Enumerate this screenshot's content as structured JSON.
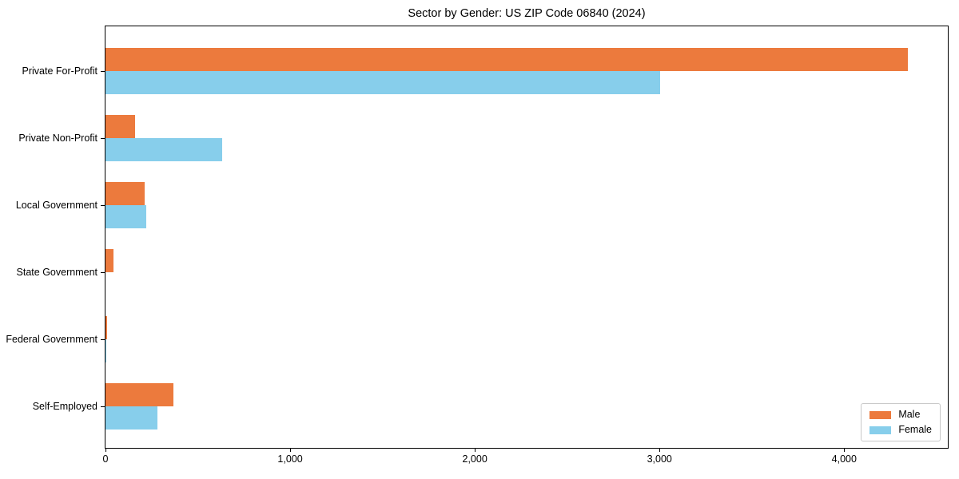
{
  "chart_data": {
    "type": "bar",
    "orientation": "horizontal",
    "title": "Sector by Gender: US ZIP Code 06840 (2024)",
    "categories": [
      "Private For-Profit",
      "Private Non-Profit",
      "Local Government",
      "State Government",
      "Federal Government",
      "Self-Employed"
    ],
    "series": [
      {
        "name": "Male",
        "color": "#ec7a3d",
        "values": [
          4345,
          160,
          210,
          45,
          9,
          370
        ]
      },
      {
        "name": "Female",
        "color": "#87ceeb",
        "values": [
          3005,
          632,
          220,
          0,
          5,
          280
        ]
      }
    ],
    "xlim": [
      0,
      4570
    ],
    "xticks": [
      0,
      1000,
      2000,
      3000,
      4000
    ],
    "xtick_labels": [
      "0",
      "1,000",
      "2,000",
      "3,000",
      "4,000"
    ],
    "xlabel": "",
    "ylabel": "",
    "grid": false,
    "legend": {
      "location": "lower-right",
      "entries": [
        "Male",
        "Female"
      ]
    }
  }
}
